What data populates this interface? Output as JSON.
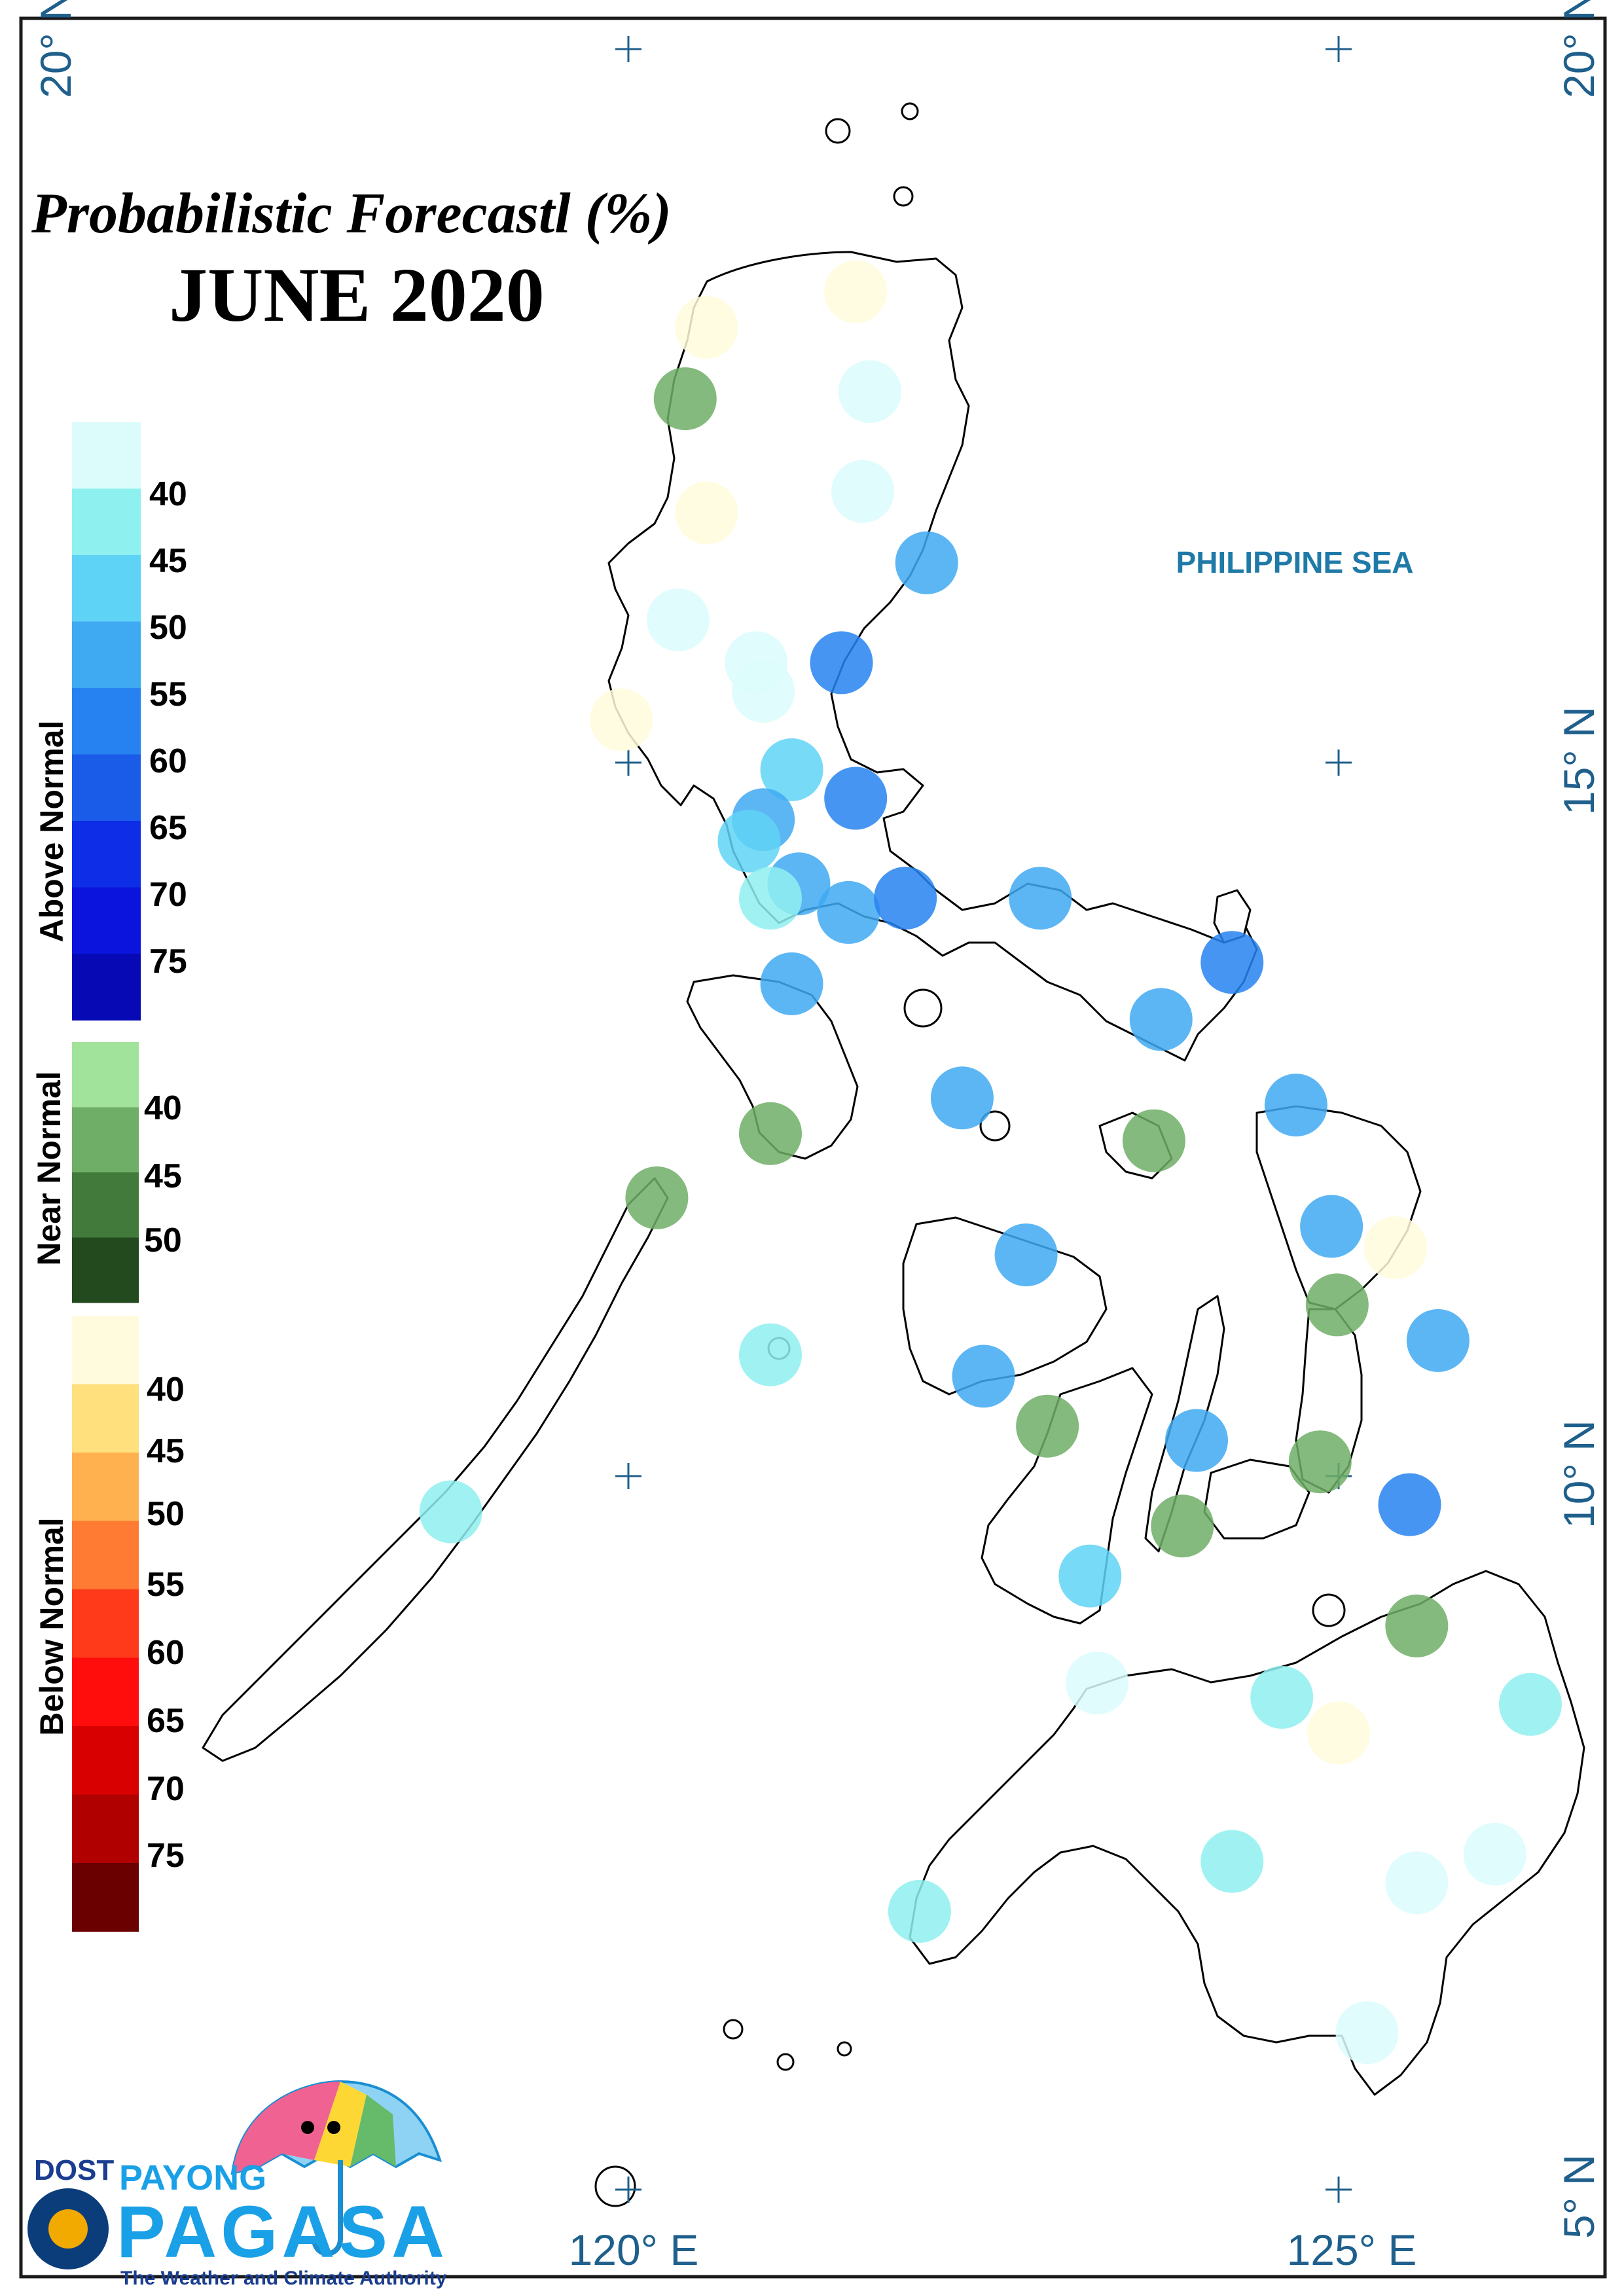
{
  "title": "Probabilistic Forecastl (%)",
  "subtitle": "JUNE 2020",
  "sea_label": "PHILIPPINE SEA",
  "graticule": {
    "lat_left": [
      "20° N"
    ],
    "lat_right": [
      "20° N",
      "15° N",
      "10° N",
      "5° N"
    ],
    "lon_bottom": [
      "120° E",
      "125° E"
    ]
  },
  "legend": {
    "above": {
      "label": "Above Normal",
      "ticks": [
        "40",
        "45",
        "50",
        "55",
        "60",
        "65",
        "70",
        "75"
      ],
      "colors": [
        "#dcfbfb",
        "#8ff0f0",
        "#5fd3f6",
        "#3fa9f2",
        "#2682f0",
        "#1a5be8",
        "#0d2ee6",
        "#0a14dc",
        "#0709b4"
      ]
    },
    "near": {
      "label": "Near Normal",
      "ticks": [
        "40",
        "45",
        "50"
      ],
      "colors": [
        "#a1e39a",
        "#6fae66",
        "#427a3c",
        "#234a1f"
      ]
    },
    "below": {
      "label": "Below Normal",
      "ticks": [
        "40",
        "45",
        "50",
        "55",
        "60",
        "65",
        "70",
        "75"
      ],
      "colors": [
        "#fffbdc",
        "#ffe07d",
        "#ffb04f",
        "#ff7a32",
        "#ff3a1a",
        "#ff0c0c",
        "#d80000",
        "#b00000",
        "#6a0000"
      ]
    }
  },
  "stations": [
    {
      "lon": 120.55,
      "lat": 18.05,
      "cat": "below",
      "pct": 35
    },
    {
      "lon": 121.6,
      "lat": 18.3,
      "cat": "below",
      "pct": 35
    },
    {
      "lon": 120.4,
      "lat": 17.55,
      "cat": "near",
      "pct": 40
    },
    {
      "lon": 121.7,
      "lat": 17.6,
      "cat": "above",
      "pct": 35
    },
    {
      "lon": 121.65,
      "lat": 16.9,
      "cat": "above",
      "pct": 35
    },
    {
      "lon": 120.55,
      "lat": 16.75,
      "cat": "below",
      "pct": 35
    },
    {
      "lon": 122.1,
      "lat": 16.4,
      "cat": "above",
      "pct": 50
    },
    {
      "lon": 120.35,
      "lat": 16.0,
      "cat": "above",
      "pct": 35
    },
    {
      "lon": 120.9,
      "lat": 15.7,
      "cat": "above",
      "pct": 35
    },
    {
      "lon": 120.95,
      "lat": 15.5,
      "cat": "above",
      "pct": 35
    },
    {
      "lon": 121.5,
      "lat": 15.7,
      "cat": "above",
      "pct": 55
    },
    {
      "lon": 119.95,
      "lat": 15.3,
      "cat": "below",
      "pct": 35
    },
    {
      "lon": 121.15,
      "lat": 14.95,
      "cat": "above",
      "pct": 45
    },
    {
      "lon": 121.6,
      "lat": 14.75,
      "cat": "above",
      "pct": 55
    },
    {
      "lon": 120.95,
      "lat": 14.6,
      "cat": "above",
      "pct": 50
    },
    {
      "lon": 120.85,
      "lat": 14.45,
      "cat": "above",
      "pct": 45
    },
    {
      "lon": 121.2,
      "lat": 14.15,
      "cat": "above",
      "pct": 50
    },
    {
      "lon": 121.55,
      "lat": 13.95,
      "cat": "above",
      "pct": 50
    },
    {
      "lon": 121.0,
      "lat": 14.05,
      "cat": "above",
      "pct": 40
    },
    {
      "lon": 121.95,
      "lat": 14.05,
      "cat": "above",
      "pct": 55
    },
    {
      "lon": 122.9,
      "lat": 14.05,
      "cat": "above",
      "pct": 50
    },
    {
      "lon": 124.25,
      "lat": 13.6,
      "cat": "above",
      "pct": 55
    },
    {
      "lon": 121.15,
      "lat": 13.45,
      "cat": "above",
      "pct": 50
    },
    {
      "lon": 123.75,
      "lat": 13.2,
      "cat": "above",
      "pct": 50
    },
    {
      "lon": 122.35,
      "lat": 12.65,
      "cat": "above",
      "pct": 50
    },
    {
      "lon": 124.7,
      "lat": 12.6,
      "cat": "above",
      "pct": 50
    },
    {
      "lon": 121.0,
      "lat": 12.4,
      "cat": "near",
      "pct": 40
    },
    {
      "lon": 123.7,
      "lat": 12.35,
      "cat": "near",
      "pct": 40
    },
    {
      "lon": 120.2,
      "lat": 11.95,
      "cat": "near",
      "pct": 40
    },
    {
      "lon": 124.95,
      "lat": 11.75,
      "cat": "above",
      "pct": 50
    },
    {
      "lon": 125.4,
      "lat": 11.6,
      "cat": "below",
      "pct": 35
    },
    {
      "lon": 122.8,
      "lat": 11.55,
      "cat": "above",
      "pct": 50
    },
    {
      "lon": 124.99,
      "lat": 11.2,
      "cat": "near",
      "pct": 40
    },
    {
      "lon": 125.7,
      "lat": 10.95,
      "cat": "above",
      "pct": 50
    },
    {
      "lon": 121.0,
      "lat": 10.85,
      "cat": "above",
      "pct": 40
    },
    {
      "lon": 122.5,
      "lat": 10.7,
      "cat": "above",
      "pct": 50
    },
    {
      "lon": 122.95,
      "lat": 10.35,
      "cat": "near",
      "pct": 40
    },
    {
      "lon": 124.0,
      "lat": 10.25,
      "cat": "above",
      "pct": 50
    },
    {
      "lon": 124.87,
      "lat": 10.1,
      "cat": "near",
      "pct": 40
    },
    {
      "lon": 118.75,
      "lat": 9.75,
      "cat": "above",
      "pct": 40
    },
    {
      "lon": 125.5,
      "lat": 9.8,
      "cat": "above",
      "pct": 55
    },
    {
      "lon": 123.9,
      "lat": 9.65,
      "cat": "near",
      "pct": 40
    },
    {
      "lon": 123.25,
      "lat": 9.3,
      "cat": "above",
      "pct": 45
    },
    {
      "lon": 125.55,
      "lat": 8.95,
      "cat": "near",
      "pct": 40
    },
    {
      "lon": 123.3,
      "lat": 8.55,
      "cat": "above",
      "pct": 35
    },
    {
      "lon": 124.6,
      "lat": 8.45,
      "cat": "above",
      "pct": 40
    },
    {
      "lon": 126.35,
      "lat": 8.4,
      "cat": "above",
      "pct": 40
    },
    {
      "lon": 125.0,
      "lat": 8.2,
      "cat": "below",
      "pct": 35
    },
    {
      "lon": 124.25,
      "lat": 7.3,
      "cat": "above",
      "pct": 40
    },
    {
      "lon": 126.1,
      "lat": 7.35,
      "cat": "above",
      "pct": 35
    },
    {
      "lon": 125.55,
      "lat": 7.15,
      "cat": "above",
      "pct": 35
    },
    {
      "lon": 122.05,
      "lat": 6.95,
      "cat": "above",
      "pct": 40
    },
    {
      "lon": 125.2,
      "lat": 6.1,
      "cat": "above",
      "pct": 35
    }
  ],
  "logo": {
    "dost": "DOST",
    "payong": "PAYONG",
    "pagasa": "PAGASA",
    "tagline": "The Weather and Climate Authority"
  }
}
